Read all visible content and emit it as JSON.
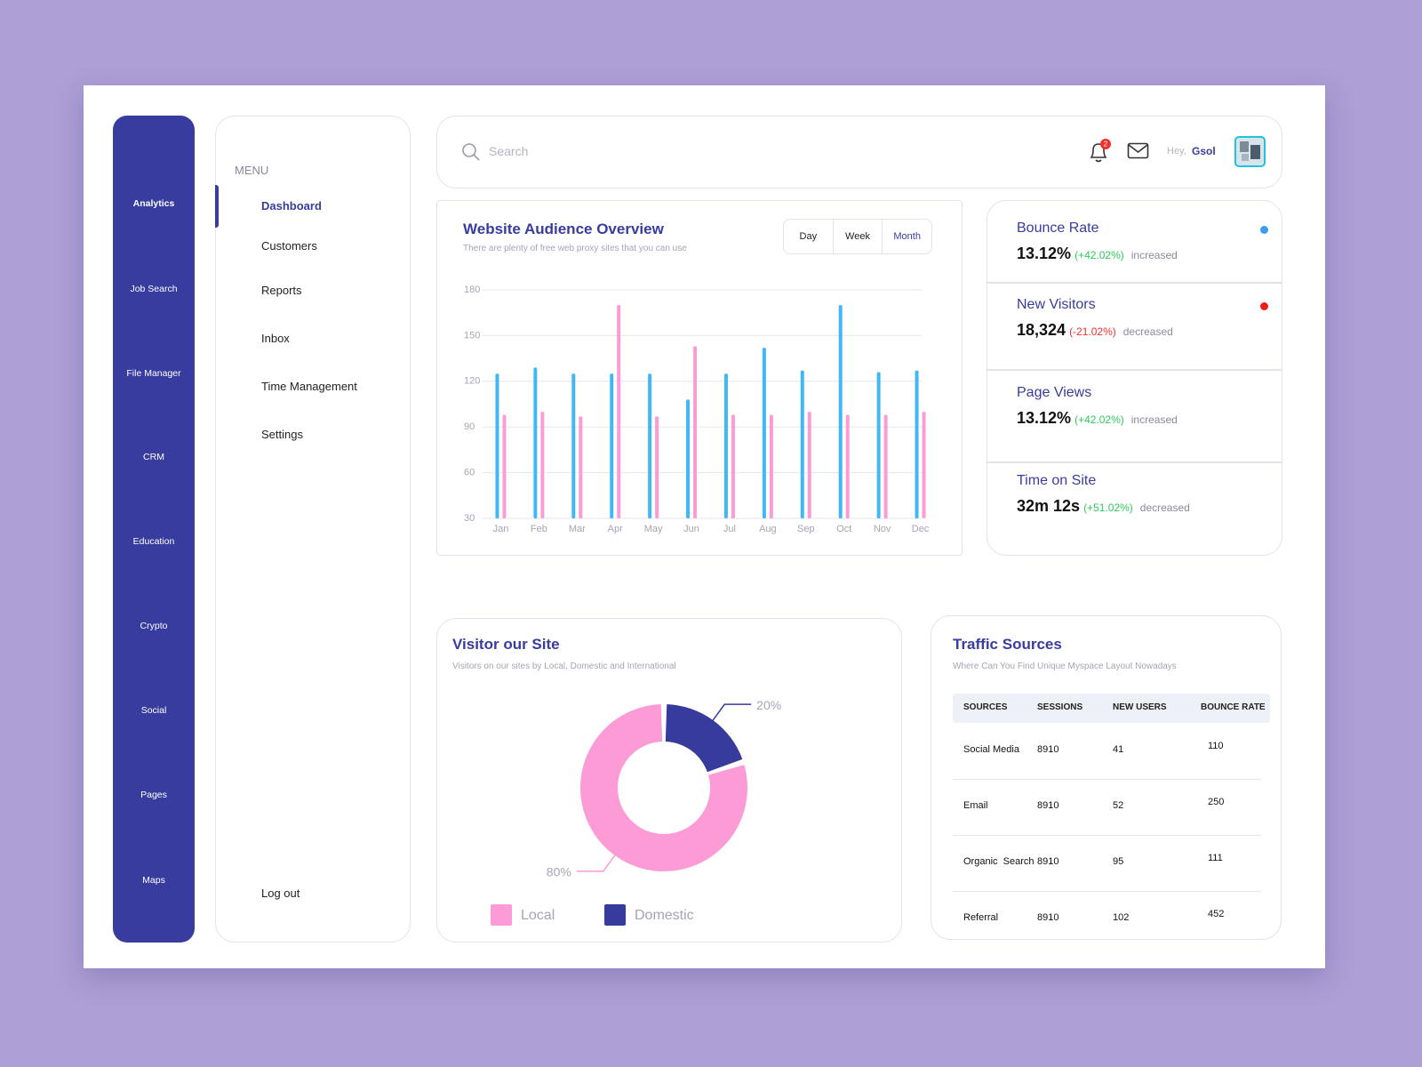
{
  "sidebar": {
    "items": [
      "Analytics",
      "Job Search",
      "File Manager",
      "CRM",
      "Education",
      "Crypto",
      "Social",
      "Pages",
      "Maps"
    ],
    "active": 0
  },
  "menu": {
    "title": "MENU",
    "items": [
      "Dashboard",
      "Customers",
      "Reports",
      "Inbox",
      "Time Management",
      "Settings"
    ],
    "active": 0,
    "logout": "Log out"
  },
  "header": {
    "search_placeholder": "Search",
    "notification_count": "2",
    "greeting": "Hey,",
    "user": "Gsol"
  },
  "audience_ranges": {
    "options": [
      "Day",
      "Week",
      "Month"
    ],
    "active": 2
  },
  "chart_data": [
    {
      "type": "bar",
      "title": "Website Audience Overview",
      "subtitle": "There are plenty of free web proxy sites that you can use",
      "categories": [
        "Jan",
        "Feb",
        "Mar",
        "Apr",
        "May",
        "Jun",
        "Jul",
        "Aug",
        "Sep",
        "Oct",
        "Nov",
        "Dec"
      ],
      "series": [
        {
          "color": "#40b8f6",
          "values": [
            125,
            129,
            125,
            125,
            125,
            108,
            125,
            142,
            127,
            170,
            126,
            127
          ]
        },
        {
          "color": "#fb9dd4",
          "values": [
            98,
            100,
            97,
            170,
            97,
            143,
            98,
            98,
            100,
            98,
            98,
            100
          ]
        }
      ],
      "ylim": [
        30,
        180
      ],
      "yticks": [
        30,
        60,
        90,
        120,
        150,
        180
      ],
      "grid": true
    },
    {
      "type": "pie",
      "title": "Visitor our Site",
      "subtitle": "Visitors on our sites by Local, Domestic and International",
      "categories": [
        "Local",
        "Domestic"
      ],
      "values": [
        80,
        20
      ],
      "value_labels": [
        "80%",
        "20%"
      ],
      "colors": [
        "#fc9bd5",
        "#373b9c"
      ]
    }
  ],
  "stats": [
    {
      "title": "Bounce Rate",
      "value": "13.12%",
      "change": "(+42.02%)",
      "status": "increased",
      "change_color": "#2ec95c",
      "dot_color": "#3b9bf0"
    },
    {
      "title": "New Visitors",
      "value": "18,324",
      "change": "(-21.02%)",
      "status": "decreased",
      "change_color": "#f0322e",
      "dot_color": "#f01c1c"
    },
    {
      "title": "Page Views",
      "value": "13.12%",
      "change": "(+42.02%)",
      "status": "increased",
      "change_color": "#2ec95c"
    },
    {
      "title": "Time on Site",
      "value": "32m 12s",
      "change": "(+51.02%)",
      "status": "decreased",
      "change_color": "#2ec95c"
    }
  ],
  "traffic": {
    "title": "Traffic Sources",
    "subtitle": "Where Can You Find Unique Myspace Layout Nowadays",
    "columns": [
      "SOURCES",
      "SESSIONS",
      "NEW USERS",
      "BOUNCE RATE"
    ],
    "rows": [
      [
        "Social Media",
        8910,
        41,
        110
      ],
      [
        "Email",
        8910,
        52,
        250
      ],
      [
        "Organic  Search",
        8910,
        95,
        111
      ],
      [
        "Referral",
        8910,
        102,
        452
      ]
    ]
  }
}
